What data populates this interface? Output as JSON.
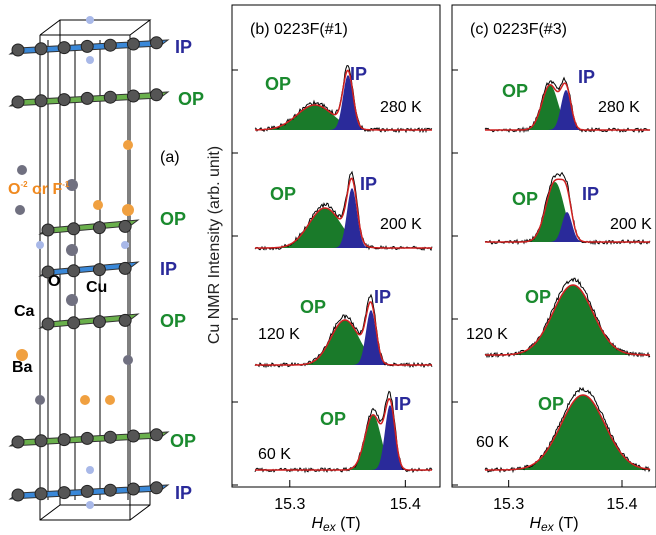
{
  "structure": {
    "label": "(a)",
    "layers": [
      "IP",
      "OP",
      "OP",
      "IP",
      "OP",
      "OP",
      "IP"
    ],
    "atoms": [
      "O",
      "Cu",
      "Ca",
      "Ba"
    ],
    "anion": [
      "O",
      "-2",
      " or F",
      "-1"
    ]
  },
  "ylabel": "Cu NMR Intensity (arb. unit)",
  "panels": [
    {
      "title": "(b) 0223F(#1)",
      "xlim": [
        15.25,
        15.43
      ],
      "xticks": [
        15.3,
        15.4
      ],
      "xlabel": {
        "symbol": "H",
        "subscript": "ex",
        "unit": " (T)"
      },
      "rows": [
        {
          "temperature": "280 K",
          "labels": [
            "OP",
            "IP"
          ]
        },
        {
          "temperature": "200 K",
          "labels": [
            "OP",
            "IP"
          ]
        },
        {
          "temperature": "120 K",
          "labels": [
            "OP",
            "IP"
          ]
        },
        {
          "temperature": "60 K",
          "labels": [
            "OP",
            "IP"
          ]
        }
      ]
    },
    {
      "title": "(c) 0223F(#3)",
      "xlim": [
        15.25,
        15.43
      ],
      "xticks": [
        15.3,
        15.4
      ],
      "xlabel": {
        "symbol": "H",
        "subscript": "ex",
        "unit": " (T)"
      },
      "rows": [
        {
          "temperature": "280 K",
          "labels": [
            "OP",
            "IP"
          ]
        },
        {
          "temperature": "200 K",
          "labels": [
            "OP",
            "IP"
          ]
        },
        {
          "temperature": "120 K",
          "labels": [
            "OP"
          ]
        },
        {
          "temperature": "60 K",
          "labels": [
            "OP"
          ]
        }
      ]
    }
  ]
}
